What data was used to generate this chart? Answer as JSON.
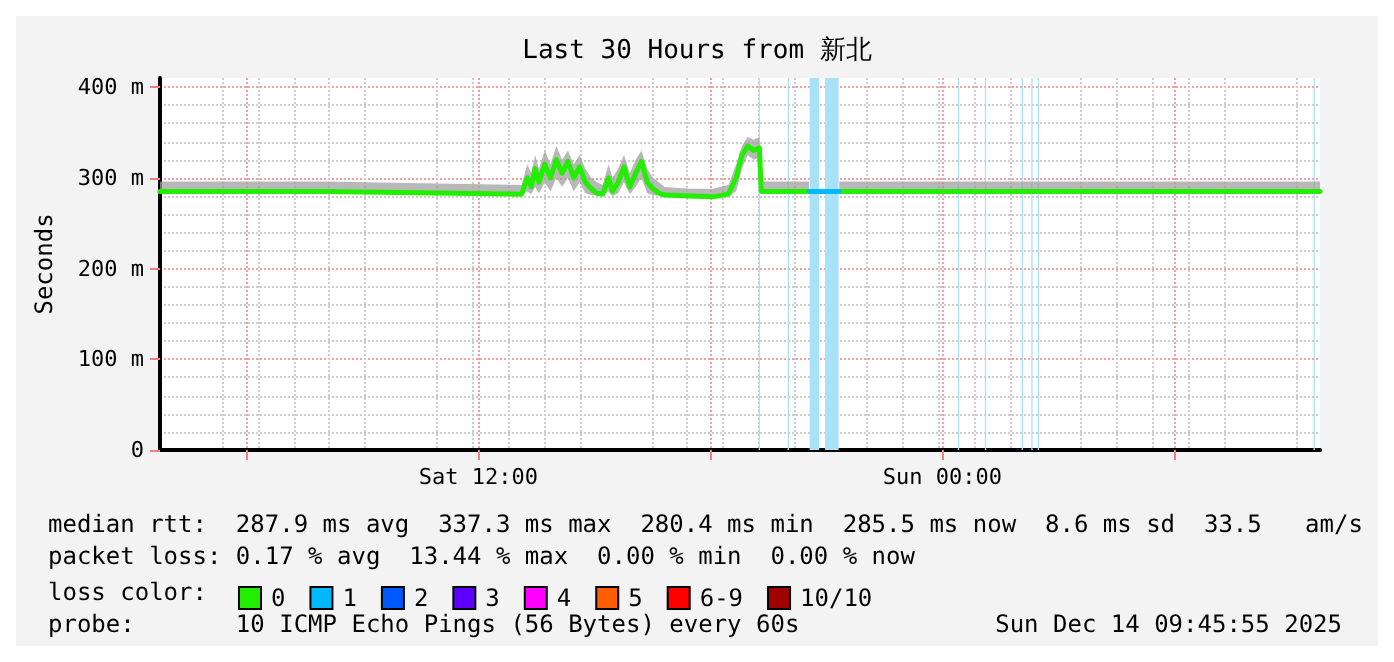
{
  "chart_data": {
    "type": "line",
    "title": "Last 30 Hours from 新北",
    "ylabel": "Seconds",
    "xlim": [
      "2025-12-13T03:46",
      "2025-12-14T09:46"
    ],
    "xticks": [
      {
        "value": "2025-12-13T06:00",
        "label": null
      },
      {
        "value": "2025-12-13T12:00",
        "label": "Sat 12:00"
      },
      {
        "value": "2025-12-13T18:00",
        "label": null
      },
      {
        "value": "2025-12-14T00:00",
        "label": "Sun 00:00"
      },
      {
        "value": "2025-12-14T06:00",
        "label": null
      }
    ],
    "ylim": [
      0,
      410
    ],
    "yticks": [
      0,
      {
        "value": 100,
        "label": "100 m"
      },
      {
        "value": 200,
        "label": "200 m"
      },
      {
        "value": 300,
        "label": "300 m"
      },
      {
        "value": 400,
        "label": "400 m"
      }
    ],
    "grid": true,
    "legend": "bottom left",
    "marker": "none",
    "line_style": "solid",
    "series": [
      {
        "name": "0",
        "color": "#22ee00",
        "x": [
          "2025-12-13T03:46",
          "2025-12-13T08:00",
          "2025-12-13T13:07",
          "2025-12-13T13:16",
          "2025-12-13T13:22",
          "2025-12-13T13:28",
          "2025-12-13T13:34",
          "2025-12-13T13:43",
          "2025-12-13T13:52",
          "2025-12-13T14:01",
          "2025-12-13T14:10",
          "2025-12-13T14:19",
          "2025-12-13T14:28",
          "2025-12-13T14:37",
          "2025-12-13T14:46",
          "2025-12-13T14:55",
          "2025-12-13T15:04",
          "2025-12-13T15:13",
          "2025-12-13T15:22",
          "2025-12-13T15:28",
          "2025-12-13T15:37",
          "2025-12-13T15:46",
          "2025-12-13T15:55",
          "2025-12-13T16:04",
          "2025-12-13T16:13",
          "2025-12-13T16:22",
          "2025-12-13T16:31",
          "2025-12-13T16:40",
          "2025-12-13T16:49",
          "2025-12-13T17:28",
          "2025-12-13T18:04",
          "2025-12-13T18:28",
          "2025-12-13T18:40",
          "2025-12-13T18:49",
          "2025-12-13T18:58",
          "2025-12-13T19:07",
          "2025-12-13T19:16",
          "2025-12-13T19:19",
          "2025-12-13T20:00",
          "2025-12-13T20:33",
          "2025-12-13T20:35",
          "2025-12-13T21:20",
          "2025-12-14T00:00",
          "2025-12-14T04:00",
          "2025-12-14T09:46"
        ],
        "values": [
          285,
          285,
          282,
          300,
          290,
          310,
          295,
          315,
          300,
          320,
          305,
          318,
          300,
          312,
          295,
          288,
          283,
          282,
          300,
          285,
          295,
          312,
          290,
          305,
          318,
          295,
          288,
          283,
          281,
          280,
          279,
          282,
          300,
          325,
          335,
          330,
          333,
          285,
          285,
          285,
          null,
          285,
          285,
          285,
          285
        ],
        "lower": [
          283,
          283,
          280,
          285,
          282,
          290,
          283,
          295,
          285,
          300,
          290,
          300,
          285,
          295,
          283,
          281,
          281,
          280,
          285,
          280,
          283,
          295,
          282,
          290,
          300,
          283,
          281,
          281,
          279,
          278,
          278,
          280,
          285,
          310,
          325,
          320,
          322,
          283,
          283,
          283,
          null,
          283,
          283,
          283,
          283
        ],
        "upper": [
          296,
          296,
          292,
          315,
          305,
          325,
          310,
          330,
          315,
          335,
          320,
          330,
          315,
          325,
          310,
          300,
          295,
          292,
          315,
          300,
          310,
          325,
          305,
          320,
          330,
          310,
          300,
          295,
          290,
          288,
          288,
          292,
          315,
          335,
          345,
          342,
          345,
          296,
          296,
          296,
          null,
          296,
          296,
          296,
          296
        ]
      },
      {
        "name": "1",
        "color": "#00b8ff",
        "x": [
          "2025-12-13T20:34",
          "2025-12-13T21:19"
        ],
        "values": [
          285,
          285
        ]
      },
      {
        "name": "2",
        "color": "#0059ff"
      },
      {
        "name": "3",
        "color": "#5e00ff"
      },
      {
        "name": "4",
        "color": "#ff00ff"
      },
      {
        "name": "5",
        "color": "#ff5e00"
      },
      {
        "name": "6-9",
        "color": "#ff0000"
      },
      {
        "name": "10/10",
        "color": "#a10000"
      }
    ],
    "bands": [
      {
        "axis": "x",
        "from": "2025-12-13T19:15",
        "to": "2025-12-13T19:17",
        "color": "#a8e2f8"
      },
      {
        "axis": "x",
        "from": "2025-12-13T20:00",
        "to": "2025-12-13T20:02",
        "color": "#a8e2f8"
      },
      {
        "axis": "x",
        "from": "2025-12-13T20:34",
        "to": "2025-12-13T20:49",
        "color": "#a8e2f8"
      },
      {
        "axis": "x",
        "from": "2025-12-13T20:58",
        "to": "2025-12-13T21:19",
        "color": "#a8e2f8"
      },
      {
        "axis": "x",
        "from": "2025-12-14T00:24",
        "to": "2025-12-14T00:26",
        "color": "#a8e2f8"
      },
      {
        "axis": "x",
        "from": "2025-12-14T01:06",
        "to": "2025-12-14T01:08",
        "color": "#a8e2f8"
      },
      {
        "axis": "x",
        "from": "2025-12-14T02:03",
        "to": "2025-12-14T02:05",
        "color": "#a8e2f8"
      },
      {
        "axis": "x",
        "from": "2025-12-14T02:18",
        "to": "2025-12-14T02:20",
        "color": "#a8e2f8"
      },
      {
        "axis": "x",
        "from": "2025-12-14T02:28",
        "to": "2025-12-14T02:30",
        "color": "#a8e2f8"
      },
      {
        "axis": "x",
        "from": "2025-12-14T09:36",
        "to": "2025-12-14T09:38",
        "color": "#a8e2f8"
      }
    ],
    "annotations": [
      "median rtt:  287.9 ms avg  337.3 ms max  280.4 ms min  285.5 ms now  8.6 ms sd  33.5   am/s",
      "packet loss: 0.17 % avg  13.44 % max  0.00 % min  0.00 % now",
      "loss color:",
      "probe:       10 ICMP Echo Pings (56 Bytes) every 60s",
      "Sun Dec 14 09:45:55 2025"
    ]
  }
}
